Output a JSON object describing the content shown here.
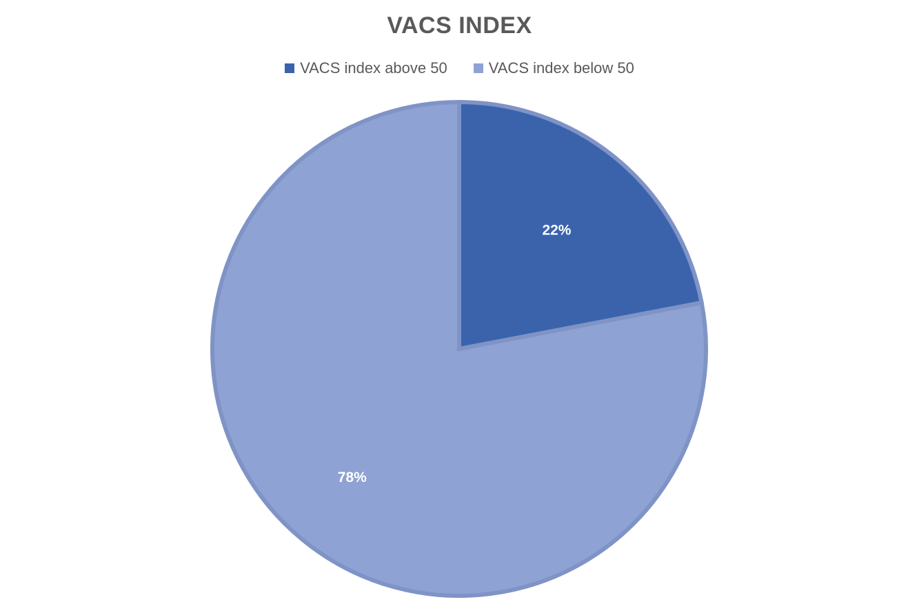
{
  "chart_data": {
    "type": "pie",
    "title": "VACS INDEX",
    "legend_position": "top",
    "slices": [
      {
        "name": "VACS index above 50",
        "value": 22,
        "label": "22%",
        "color": "#3a63ac"
      },
      {
        "name": "VACS index below 50",
        "value": 78,
        "label": "78%",
        "color": "#8ea2d3"
      }
    ],
    "edge_color": "#7f93c6"
  }
}
